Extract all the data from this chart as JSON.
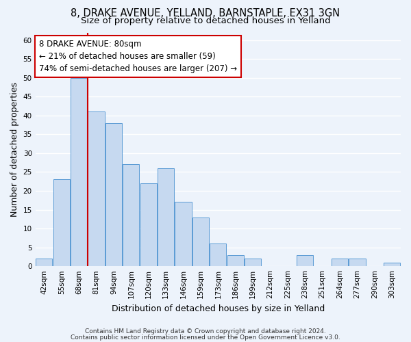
{
  "title1": "8, DRAKE AVENUE, YELLAND, BARNSTAPLE, EX31 3GN",
  "title2": "Size of property relative to detached houses in Yelland",
  "xlabel": "Distribution of detached houses by size in Yelland",
  "ylabel": "Number of detached properties",
  "categories": [
    "42sqm",
    "55sqm",
    "68sqm",
    "81sqm",
    "94sqm",
    "107sqm",
    "120sqm",
    "133sqm",
    "146sqm",
    "159sqm",
    "173sqm",
    "186sqm",
    "199sqm",
    "212sqm",
    "225sqm",
    "238sqm",
    "251sqm",
    "264sqm",
    "277sqm",
    "290sqm",
    "303sqm"
  ],
  "values": [
    2,
    23,
    50,
    41,
    38,
    27,
    22,
    26,
    17,
    13,
    6,
    3,
    2,
    0,
    0,
    3,
    0,
    2,
    2,
    0,
    1
  ],
  "bar_color": "#c6d9f0",
  "bar_edge_color": "#5b9bd5",
  "vline_color": "#cc0000",
  "vline_x_index": 2.5,
  "annotation_line1": "8 DRAKE AVENUE: 80sqm",
  "annotation_line2": "← 21% of detached houses are smaller (59)",
  "annotation_line3": "74% of semi-detached houses are larger (207) →",
  "annotation_box_color": "white",
  "annotation_box_edge_color": "#cc0000",
  "ylim": [
    0,
    62
  ],
  "yticks": [
    0,
    5,
    10,
    15,
    20,
    25,
    30,
    35,
    40,
    45,
    50,
    55,
    60
  ],
  "footnote1": "Contains HM Land Registry data © Crown copyright and database right 2024.",
  "footnote2": "Contains public sector information licensed under the Open Government Licence v3.0.",
  "background_color": "#edf3fb",
  "grid_color": "#ffffff",
  "title_fontsize": 10.5,
  "subtitle_fontsize": 9.5,
  "axis_label_fontsize": 9,
  "tick_fontsize": 7.5,
  "annotation_fontsize": 8.5,
  "footnote_fontsize": 6.5
}
